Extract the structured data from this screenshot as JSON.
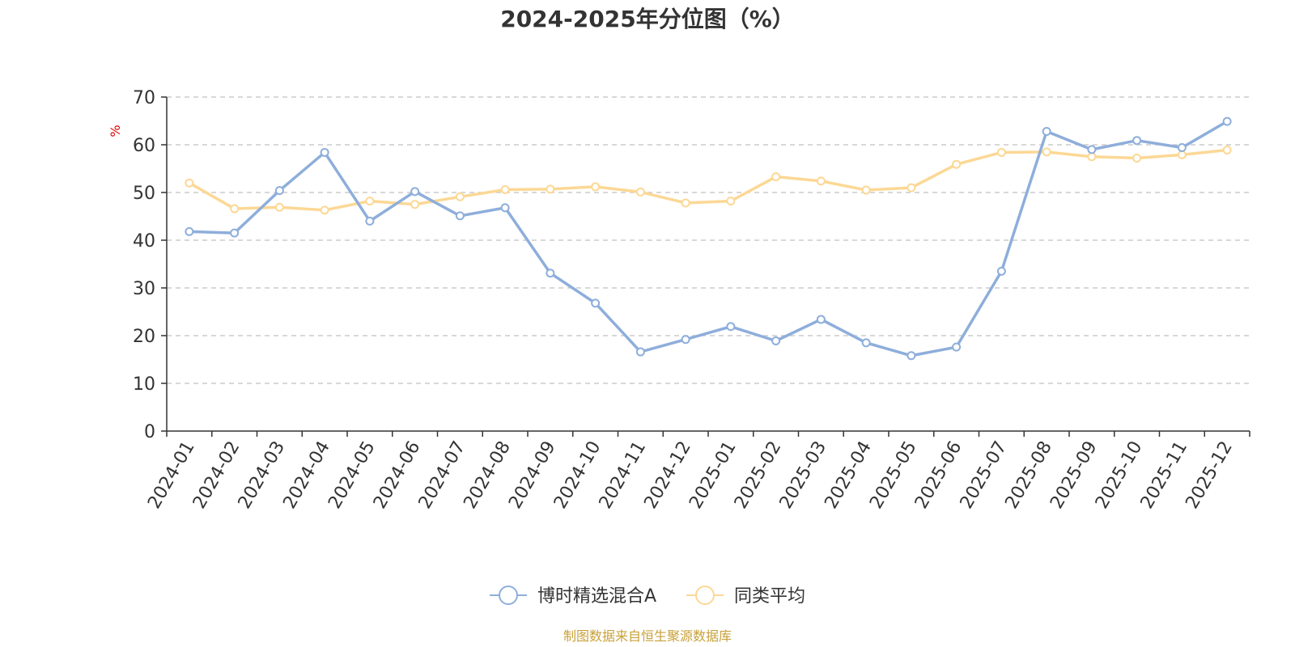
{
  "chart_data": {
    "type": "line",
    "title": "2024-2025年分位图（%）",
    "ylabel": "%",
    "ylim": [
      0,
      70
    ],
    "yticks": [
      0,
      10,
      20,
      30,
      40,
      50,
      60,
      70
    ],
    "grid": true,
    "legend_position": "bottom",
    "categories": [
      "2024-01",
      "2024-02",
      "2024-03",
      "2024-04",
      "2024-05",
      "2024-06",
      "2024-07",
      "2024-08",
      "2024-09",
      "2024-10",
      "2024-11",
      "2024-12",
      "2025-01",
      "2025-02",
      "2025-03",
      "2025-04",
      "2025-05",
      "2025-06",
      "2025-07",
      "2025-08",
      "2025-09",
      "2025-10",
      "2025-11",
      "2025-12"
    ],
    "series": [
      {
        "name": "博时精选混合A",
        "color": "#8eaedb",
        "values": [
          41.8,
          41.5,
          50.4,
          58.4,
          44.0,
          50.2,
          45.1,
          46.8,
          33.1,
          26.8,
          16.6,
          19.2,
          21.9,
          18.9,
          23.4,
          18.5,
          15.8,
          17.6,
          33.5,
          62.8,
          59.0,
          60.9,
          59.4,
          64.9
        ]
      },
      {
        "name": "同类平均",
        "color": "#fcd895",
        "values": [
          52.0,
          46.6,
          46.9,
          46.3,
          48.2,
          47.5,
          49.1,
          50.6,
          50.7,
          51.2,
          50.1,
          47.8,
          48.2,
          53.3,
          52.4,
          50.5,
          51.0,
          55.9,
          58.4,
          58.5,
          57.5,
          57.2,
          57.9,
          58.9
        ]
      }
    ]
  },
  "footer": {
    "source": "制图数据来自恒生聚源数据库"
  }
}
